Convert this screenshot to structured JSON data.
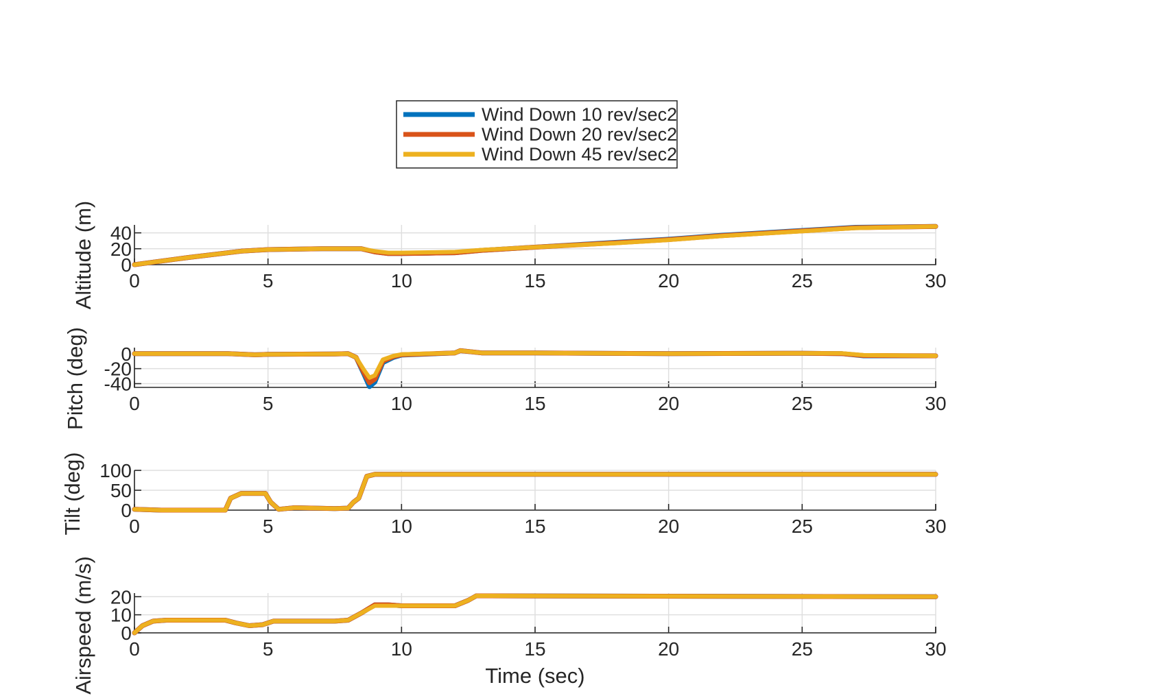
{
  "chart_data": [
    {
      "type": "line",
      "ylabel": "Altitude (m)",
      "xlim": [
        0,
        30
      ],
      "ylim": [
        0,
        50
      ],
      "xticks": [
        "0",
        "5",
        "10",
        "15",
        "20",
        "25",
        "30"
      ],
      "yticks": [
        "0",
        "20",
        "40"
      ],
      "series": [
        {
          "name": "Wind Down 10 rev/sec2",
          "color": "#0072BD",
          "x": [
            0,
            2,
            4,
            5,
            7,
            8.5,
            9,
            9.5,
            10,
            11,
            12,
            13,
            15,
            18,
            20,
            22,
            25,
            27,
            30
          ],
          "y": [
            0,
            9,
            17,
            19,
            20,
            20,
            16,
            14,
            14,
            14.5,
            15,
            18,
            22,
            28,
            32,
            37,
            43,
            47,
            48
          ]
        },
        {
          "name": "Wind Down 20 rev/sec2",
          "color": "#D95319",
          "x": [
            0,
            2,
            4,
            5,
            7,
            8.5,
            9,
            9.5,
            10,
            11,
            12,
            13,
            15,
            18,
            20,
            22,
            25,
            27,
            30
          ],
          "y": [
            0,
            9,
            17,
            19,
            20,
            20,
            16,
            14,
            14,
            14.5,
            15,
            18,
            22,
            27.5,
            31.5,
            36.5,
            42.5,
            46.5,
            48
          ]
        },
        {
          "name": "Wind Down 45 rev/sec2",
          "color": "#EDB120",
          "x": [
            0,
            2,
            4,
            5,
            7,
            8.5,
            9,
            9.5,
            10,
            11,
            12,
            13,
            15,
            18,
            20,
            22,
            25,
            27,
            30
          ],
          "y": [
            0,
            9,
            17,
            19,
            20,
            20,
            17,
            15,
            15,
            15.5,
            16,
            18.5,
            22,
            27,
            31,
            36,
            42,
            46,
            48
          ]
        }
      ]
    },
    {
      "type": "line",
      "ylabel": "Pitch (deg)",
      "xlim": [
        0,
        30
      ],
      "ylim": [
        -45,
        8
      ],
      "xticks": [
        "0",
        "5",
        "10",
        "15",
        "20",
        "25",
        "30"
      ],
      "yticks": [
        "0",
        "-20",
        "-40"
      ],
      "series": [
        {
          "name": "Wind Down 10 rev/sec2",
          "color": "#0072BD",
          "x": [
            0,
            3.5,
            4.5,
            5,
            7.5,
            8,
            8.3,
            8.6,
            8.8,
            9,
            9.3,
            9.7,
            10,
            12,
            12.2,
            13,
            15,
            20,
            25,
            26.5,
            27.3,
            30
          ],
          "y": [
            0,
            0,
            -1.5,
            -1,
            -0.5,
            0,
            -5,
            -28,
            -44,
            -38,
            -12,
            -5,
            -2,
            1,
            4,
            1,
            1,
            0,
            0.5,
            0,
            -3,
            -3
          ]
        },
        {
          "name": "Wind Down 20 rev/sec2",
          "color": "#D95319",
          "x": [
            0,
            3.5,
            4.5,
            5,
            7.5,
            8,
            8.3,
            8.6,
            8.8,
            9,
            9.3,
            9.7,
            10,
            12,
            12.2,
            13,
            15,
            20,
            25,
            26.5,
            27.3,
            30
          ],
          "y": [
            0,
            0,
            -1.5,
            -1,
            -0.5,
            0,
            -5,
            -26,
            -39,
            -34,
            -10,
            -4,
            -1.5,
            1,
            4,
            1,
            1,
            0,
            0.5,
            0,
            -2.5,
            -3
          ]
        },
        {
          "name": "Wind Down 45 rev/sec2",
          "color": "#EDB120",
          "x": [
            0,
            3.5,
            4.5,
            5,
            7.5,
            8,
            8.3,
            8.6,
            8.8,
            9,
            9.3,
            9.7,
            10,
            12,
            12.2,
            13,
            15,
            20,
            25,
            26.5,
            27.3,
            30
          ],
          "y": [
            0,
            0,
            -1.5,
            -1,
            -0.5,
            0,
            -5,
            -22,
            -32,
            -29,
            -8,
            -3,
            -1,
            1,
            4,
            1,
            1,
            0,
            0.5,
            0.5,
            -2,
            -3
          ]
        }
      ]
    },
    {
      "type": "line",
      "ylabel": "Tilt (deg)",
      "xlim": [
        0,
        30
      ],
      "ylim": [
        0,
        100
      ],
      "xticks": [
        "0",
        "5",
        "10",
        "15",
        "20",
        "25",
        "30"
      ],
      "yticks": [
        "0",
        "50",
        "100"
      ],
      "series": [
        {
          "name": "Wind Down 10 rev/sec2",
          "color": "#0072BD",
          "x": [
            0,
            1,
            3.4,
            3.6,
            4,
            4.9,
            5.1,
            5.4,
            6,
            7.5,
            8,
            8.2,
            8.4,
            8.7,
            9,
            10,
            30
          ],
          "y": [
            2,
            0,
            0,
            30,
            42,
            42,
            20,
            2,
            6,
            4,
            5,
            20,
            30,
            85,
            90,
            90,
            90
          ]
        },
        {
          "name": "Wind Down 20 rev/sec2",
          "color": "#D95319",
          "x": [
            0,
            1,
            3.4,
            3.6,
            4,
            4.9,
            5.1,
            5.4,
            6,
            7.5,
            8,
            8.2,
            8.4,
            8.7,
            9,
            10,
            30
          ],
          "y": [
            2,
            0,
            0,
            30,
            42,
            42,
            20,
            2,
            6,
            4,
            5,
            20,
            30,
            85,
            90,
            90,
            90
          ]
        },
        {
          "name": "Wind Down 45 rev/sec2",
          "color": "#EDB120",
          "x": [
            0,
            1,
            3.4,
            3.6,
            4,
            4.9,
            5.1,
            5.4,
            6,
            7.5,
            8,
            8.2,
            8.4,
            8.7,
            9,
            10,
            30
          ],
          "y": [
            2,
            0,
            0,
            30,
            42,
            42,
            20,
            2,
            6,
            4,
            5,
            20,
            30,
            85,
            90,
            90,
            90
          ]
        }
      ]
    },
    {
      "type": "line",
      "ylabel": "Airspeed (m/s)",
      "xlim": [
        0,
        30
      ],
      "ylim": [
        0,
        22
      ],
      "xticks": [
        "0",
        "5",
        "10",
        "15",
        "20",
        "25",
        "30"
      ],
      "yticks": [
        "0",
        "10",
        "20"
      ],
      "series": [
        {
          "name": "Wind Down 10 rev/sec2",
          "color": "#0072BD",
          "x": [
            0,
            0.3,
            0.7,
            1.2,
            3.4,
            3.8,
            4.3,
            4.8,
            5.2,
            6,
            7.5,
            8,
            8.5,
            9,
            9.5,
            10,
            12,
            12.5,
            12.8,
            13.3,
            30
          ],
          "y": [
            0,
            4,
            6.5,
            7,
            7,
            5.5,
            4,
            4.5,
            6.5,
            6.5,
            6.5,
            7,
            11,
            15.5,
            15.5,
            15,
            15,
            18,
            20.5,
            20.5,
            20
          ]
        },
        {
          "name": "Wind Down 20 rev/sec2",
          "color": "#D95319",
          "x": [
            0,
            0.3,
            0.7,
            1.2,
            3.4,
            3.8,
            4.3,
            4.8,
            5.2,
            6,
            7.5,
            8,
            8.5,
            9,
            9.5,
            10,
            12,
            12.5,
            12.8,
            13.3,
            30
          ],
          "y": [
            0,
            4,
            6.5,
            7,
            7,
            5.5,
            4,
            4.5,
            6.5,
            6.5,
            6.5,
            7,
            11,
            15.5,
            15.5,
            15,
            15,
            18,
            20.5,
            20.5,
            20
          ]
        },
        {
          "name": "Wind Down 45 rev/sec2",
          "color": "#EDB120",
          "x": [
            0,
            0.3,
            0.7,
            1.2,
            3.4,
            3.8,
            4.3,
            4.8,
            5.2,
            6,
            7.5,
            8,
            8.5,
            9,
            9.5,
            10,
            12,
            12.5,
            12.8,
            13.3,
            30
          ],
          "y": [
            0,
            4,
            6.5,
            7,
            7,
            5.5,
            4,
            4.5,
            6.5,
            6.5,
            6.5,
            7,
            11,
            15,
            15,
            15,
            15,
            18,
            20.5,
            20.5,
            20
          ]
        }
      ]
    }
  ],
  "legend": {
    "entries": [
      {
        "label": "Wind Down 10 rev/sec2",
        "color": "#0072BD"
      },
      {
        "label": "Wind Down 20 rev/sec2",
        "color": "#D95319"
      },
      {
        "label": "Wind Down 45 rev/sec2",
        "color": "#EDB120"
      }
    ],
    "placement": "top-center"
  },
  "xlabel": "Time (sec)",
  "grid": true
}
